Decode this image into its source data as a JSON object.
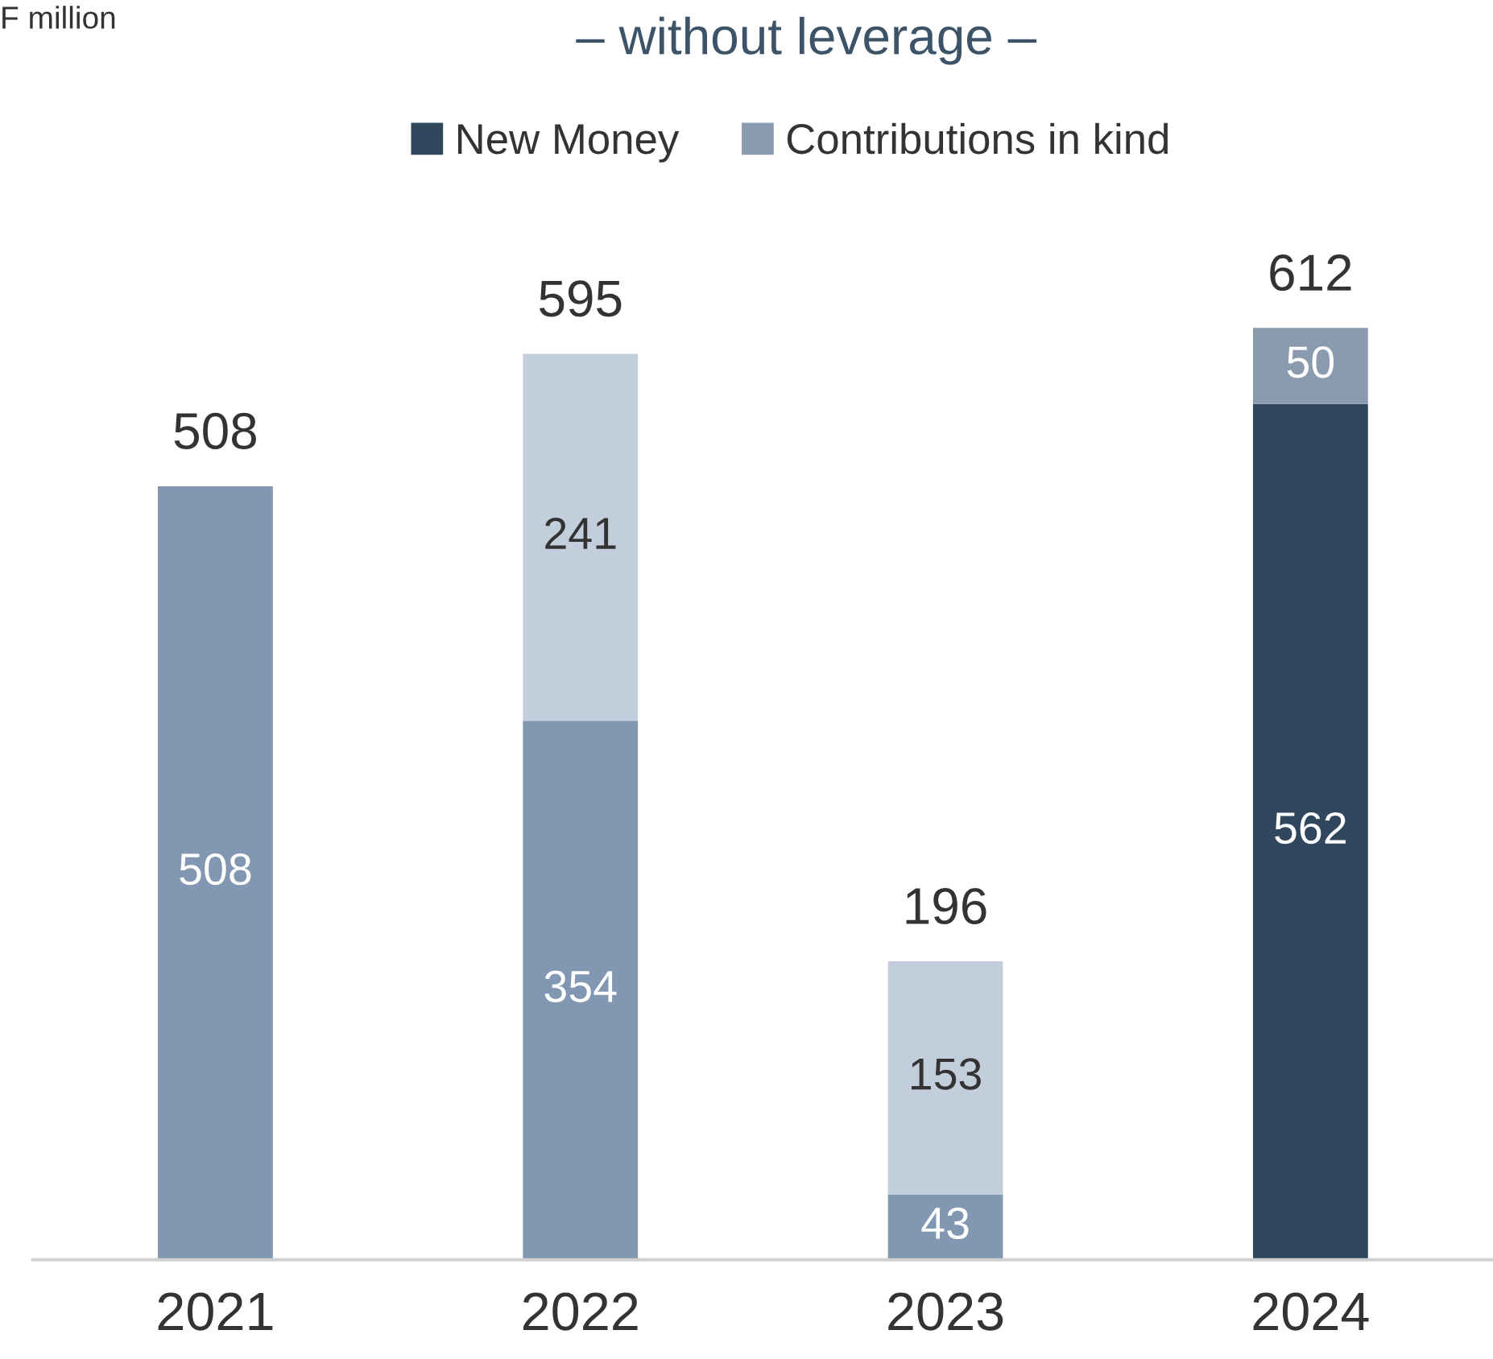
{
  "chart_data": {
    "type": "bar",
    "title": "– without leverage –",
    "annotations": [
      "F million"
    ],
    "categories": [
      "2021",
      "2022",
      "2023",
      "2024"
    ],
    "stacked": true,
    "data_labels": true,
    "legend": "top",
    "grid": false,
    "series": [
      {
        "name": "New Money",
        "color": "#30475e",
        "colors": [
          "#8197b2",
          "#8197b2",
          "#8197b2",
          "#30475e"
        ],
        "values": [
          508,
          354,
          43,
          562
        ]
      },
      {
        "name": "Contributions in kind",
        "color": "#8a9bb0",
        "colors": [
          "#c3cedd",
          "#c3cedd",
          "#c3cedd",
          "#8a9bb0"
        ],
        "values": [
          null,
          241,
          153,
          50
        ]
      }
    ],
    "totals": [
      "508",
      "595",
      "196",
      "612"
    ]
  }
}
